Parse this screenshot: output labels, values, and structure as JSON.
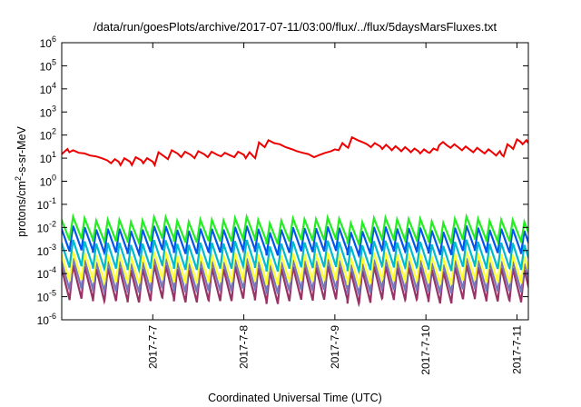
{
  "chart_data": {
    "type": "line",
    "title": "/data/run/goesPlots/archive/2017-07-11/03:00/flux/../flux/5daysMarsFluxes.txt",
    "xlabel": "Coordinated Universal Time (UTC)",
    "ylabel": "protons/cm2-s-sr-MeV",
    "ylabel_parts": {
      "base": "protons/cm",
      "sup": "2",
      "rest": "-s-sr-MeV"
    },
    "y_scale": "log",
    "ylim": [
      1e-06,
      1000000.0
    ],
    "y_tick_labels": [
      {
        "base": "10",
        "exp": "-6"
      },
      {
        "base": "10",
        "exp": "-5"
      },
      {
        "base": "10",
        "exp": "-4"
      },
      {
        "base": "10",
        "exp": "-3"
      },
      {
        "base": "10",
        "exp": "-2"
      },
      {
        "base": "10",
        "exp": "-1"
      },
      {
        "base": "10",
        "exp": "0"
      },
      {
        "base": "10",
        "exp": "1"
      },
      {
        "base": "10",
        "exp": "2"
      },
      {
        "base": "10",
        "exp": "3"
      },
      {
        "base": "10",
        "exp": "4"
      },
      {
        "base": "10",
        "exp": "5"
      },
      {
        "base": "10",
        "exp": "6"
      }
    ],
    "xlim": [
      "2017-07-06T00:00",
      "2017-07-11T03:00"
    ],
    "x_ticks": [
      "2017-07-07",
      "2017-07-08",
      "2017-07-09",
      "2017-07-10",
      "2017-07-11"
    ],
    "x_tick_labels": [
      "2017-7-7",
      "2017-7-8",
      "2017-7-9",
      "2017-7-10",
      "2017-7-11"
    ],
    "grid": false,
    "legend": "none",
    "series": [
      {
        "color": "#ee0000",
        "points": [
          [
            "2017-07-06T00:00",
            15
          ],
          [
            "2017-07-06T01:30",
            25
          ],
          [
            "2017-07-06T02:00",
            18
          ],
          [
            "2017-07-06T03:00",
            22
          ],
          [
            "2017-07-06T04:30",
            17
          ],
          [
            "2017-07-06T06:00",
            16
          ],
          [
            "2017-07-06T07:30",
            13
          ],
          [
            "2017-07-06T09:00",
            12
          ],
          [
            "2017-07-06T10:30",
            10
          ],
          [
            "2017-07-06T12:00",
            8
          ],
          [
            "2017-07-06T13:00",
            6
          ],
          [
            "2017-07-06T14:00",
            9
          ],
          [
            "2017-07-06T15:00",
            7
          ],
          [
            "2017-07-06T15:30",
            5
          ],
          [
            "2017-07-06T16:30",
            10
          ],
          [
            "2017-07-06T18:00",
            7
          ],
          [
            "2017-07-06T18:30",
            5
          ],
          [
            "2017-07-06T19:30",
            11
          ],
          [
            "2017-07-06T21:00",
            8
          ],
          [
            "2017-07-06T21:30",
            6
          ],
          [
            "2017-07-06T22:30",
            10
          ],
          [
            "2017-07-07T00:00",
            7
          ],
          [
            "2017-07-07T00:30",
            5
          ],
          [
            "2017-07-07T01:30",
            18
          ],
          [
            "2017-07-07T03:00",
            12
          ],
          [
            "2017-07-07T04:00",
            9
          ],
          [
            "2017-07-07T05:00",
            22
          ],
          [
            "2017-07-07T06:30",
            16
          ],
          [
            "2017-07-07T07:30",
            11
          ],
          [
            "2017-07-07T08:30",
            19
          ],
          [
            "2017-07-07T10:00",
            14
          ],
          [
            "2017-07-07T11:00",
            10
          ],
          [
            "2017-07-07T12:00",
            20
          ],
          [
            "2017-07-07T13:30",
            15
          ],
          [
            "2017-07-07T14:30",
            11
          ],
          [
            "2017-07-07T15:30",
            19
          ],
          [
            "2017-07-07T17:00",
            14
          ],
          [
            "2017-07-07T18:00",
            12
          ],
          [
            "2017-07-07T19:00",
            17
          ],
          [
            "2017-07-07T20:30",
            13
          ],
          [
            "2017-07-07T21:30",
            11
          ],
          [
            "2017-07-07T22:30",
            19
          ],
          [
            "2017-07-08T00:00",
            14
          ],
          [
            "2017-07-08T00:30",
            10
          ],
          [
            "2017-07-08T01:30",
            18
          ],
          [
            "2017-07-08T02:30",
            12
          ],
          [
            "2017-07-08T03:00",
            10
          ],
          [
            "2017-07-08T04:00",
            48
          ],
          [
            "2017-07-08T05:00",
            35
          ],
          [
            "2017-07-08T05:30",
            30
          ],
          [
            "2017-07-08T06:30",
            60
          ],
          [
            "2017-07-08T08:00",
            45
          ],
          [
            "2017-07-08T09:30",
            40
          ],
          [
            "2017-07-08T11:00",
            30
          ],
          [
            "2017-07-08T12:30",
            25
          ],
          [
            "2017-07-08T14:00",
            20
          ],
          [
            "2017-07-08T15:30",
            17
          ],
          [
            "2017-07-08T17:00",
            15
          ],
          [
            "2017-07-08T18:30",
            11
          ],
          [
            "2017-07-08T20:00",
            14
          ],
          [
            "2017-07-08T21:30",
            17
          ],
          [
            "2017-07-08T23:00",
            20
          ],
          [
            "2017-07-09T00:00",
            24
          ],
          [
            "2017-07-09T01:00",
            22
          ],
          [
            "2017-07-09T02:00",
            45
          ],
          [
            "2017-07-09T03:00",
            32
          ],
          [
            "2017-07-09T03:30",
            28
          ],
          [
            "2017-07-09T04:30",
            80
          ],
          [
            "2017-07-09T06:00",
            60
          ],
          [
            "2017-07-09T07:30",
            48
          ],
          [
            "2017-07-09T08:30",
            40
          ],
          [
            "2017-07-09T09:30",
            30
          ],
          [
            "2017-07-09T10:30",
            45
          ],
          [
            "2017-07-09T12:00",
            32
          ],
          [
            "2017-07-09T12:30",
            25
          ],
          [
            "2017-07-09T13:30",
            38
          ],
          [
            "2017-07-09T14:30",
            27
          ],
          [
            "2017-07-09T15:00",
            22
          ],
          [
            "2017-07-09T16:00",
            33
          ],
          [
            "2017-07-09T17:00",
            24
          ],
          [
            "2017-07-09T17:30",
            20
          ],
          [
            "2017-07-09T18:30",
            30
          ],
          [
            "2017-07-09T19:30",
            22
          ],
          [
            "2017-07-09T20:00",
            18
          ],
          [
            "2017-07-09T21:00",
            26
          ],
          [
            "2017-07-09T22:00",
            20
          ],
          [
            "2017-07-09T22:30",
            16
          ],
          [
            "2017-07-09T23:30",
            24
          ],
          [
            "2017-07-10T00:30",
            18
          ],
          [
            "2017-07-10T01:00",
            17
          ],
          [
            "2017-07-10T02:00",
            26
          ],
          [
            "2017-07-10T03:00",
            22
          ],
          [
            "2017-07-10T03:30",
            36
          ],
          [
            "2017-07-10T04:30",
            50
          ],
          [
            "2017-07-10T05:30",
            36
          ],
          [
            "2017-07-10T06:30",
            28
          ],
          [
            "2017-07-10T07:30",
            40
          ],
          [
            "2017-07-10T08:30",
            30
          ],
          [
            "2017-07-10T09:30",
            22
          ],
          [
            "2017-07-10T10:30",
            32
          ],
          [
            "2017-07-10T11:30",
            24
          ],
          [
            "2017-07-10T12:30",
            18
          ],
          [
            "2017-07-10T13:30",
            28
          ],
          [
            "2017-07-10T14:30",
            21
          ],
          [
            "2017-07-10T15:30",
            16
          ],
          [
            "2017-07-10T16:30",
            24
          ],
          [
            "2017-07-10T17:30",
            18
          ],
          [
            "2017-07-10T18:30",
            13
          ],
          [
            "2017-07-10T19:30",
            20
          ],
          [
            "2017-07-10T20:00",
            14
          ],
          [
            "2017-07-10T20:30",
            12
          ],
          [
            "2017-07-10T21:30",
            40
          ],
          [
            "2017-07-10T22:30",
            30
          ],
          [
            "2017-07-10T23:00",
            25
          ],
          [
            "2017-07-11T00:00",
            65
          ],
          [
            "2017-07-11T01:00",
            50
          ],
          [
            "2017-07-11T01:30",
            40
          ],
          [
            "2017-07-11T02:30",
            60
          ],
          [
            "2017-07-11T03:00",
            45
          ]
        ]
      },
      {
        "color": "#22ee22",
        "sawtooth": {
          "peak": 0.022,
          "drop": 8,
          "period_hours": 3.05
        }
      },
      {
        "color": "#0055ee",
        "sawtooth": {
          "peak": 0.009,
          "drop": 10,
          "period_hours": 3.05
        }
      },
      {
        "color": "#00bbcc",
        "sawtooth": {
          "peak": 0.0022,
          "drop": 12,
          "period_hours": 3.05
        }
      },
      {
        "color": "#ffff33",
        "sawtooth": {
          "peak": 0.0007,
          "drop": 15,
          "period_hours": 3.05
        }
      },
      {
        "color": "#7777bb",
        "sawtooth": {
          "peak": 0.00035,
          "drop": 18,
          "period_hours": 3.05
        }
      },
      {
        "color": "#993366",
        "sawtooth": {
          "peak": 0.00018,
          "drop": 25,
          "period_hours": 3.05
        }
      }
    ]
  }
}
